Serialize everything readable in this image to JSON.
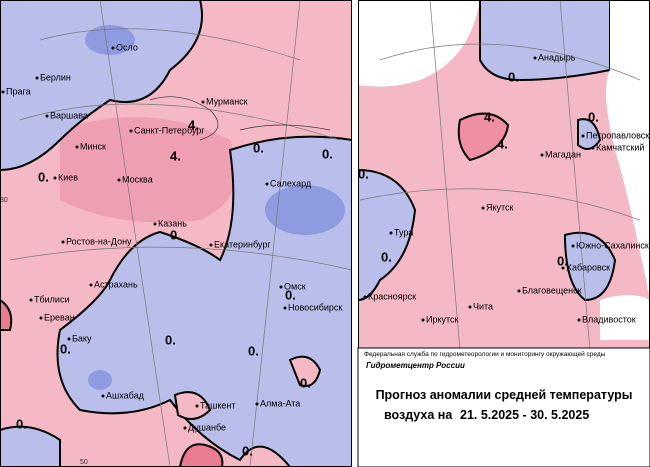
{
  "left_map": {
    "cities": [
      "Осло",
      "Берлин",
      "Прага",
      "Варшава",
      "Мурманск",
      "Санкт-Петербург",
      "Минск",
      "Киев",
      "Москва",
      "Салехард",
      "Казань",
      "Екатеринбург",
      "Ростов-на-Дону",
      "Астрахань",
      "Тбилиси",
      "Ереван",
      "Баку",
      "Омск",
      "Новосибирск",
      "Ашхабад",
      "Ташкент",
      "Алма-Ата",
      "Душанбе"
    ],
    "contour_labels": [
      "0.",
      "4.",
      "4.",
      "0.",
      "0.",
      "0.",
      "0.",
      "0.",
      "0.",
      "0.",
      "0.",
      "0.",
      "0."
    ],
    "grid_labels": [
      "30",
      "50"
    ]
  },
  "right_map": {
    "cities": [
      "Анадырь",
      "Петропавловск",
      "Камчатский",
      "Магадан",
      "Якутск",
      "Тура",
      "Южно-Сахалинск",
      "Хабаровск",
      "Благовещенск",
      "Красноярск",
      "Чита",
      "Иркутск",
      "Владивосток"
    ],
    "contour_labels": [
      "0.",
      "4.",
      "4.",
      "0.",
      "0.",
      "0.",
      "0."
    ]
  },
  "footer": {
    "agency": "Федеральная служба по гидрометеорологии и мониторингу окружающей среды",
    "center": "Гидрометцентр России",
    "title_line1": "Прогноз аномалии средней температуры",
    "title_line2": "воздуха на",
    "dates": "21. 5.2025 - 30. 5.2025"
  }
}
